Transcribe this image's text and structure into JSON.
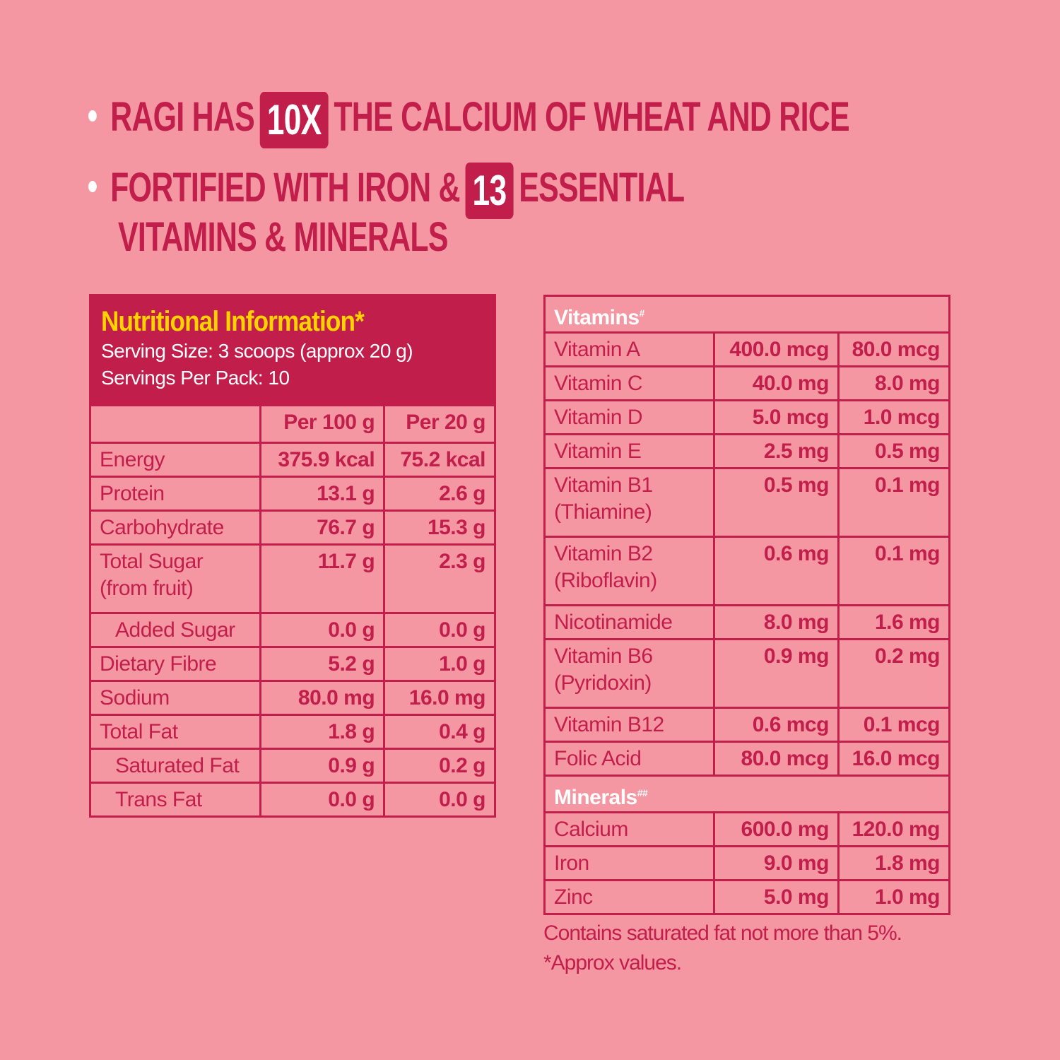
{
  "headline": {
    "line1_pre": "RAGI HAS",
    "line1_box": "10X",
    "line1_post": "THE CALCIUM OF WHEAT AND RICE",
    "line2_pre": "FORTIFIED WITH IRON &",
    "line2_box": "13",
    "line2_post": "ESSENTIAL",
    "line3": "VITAMINS & MINERALS"
  },
  "colors": {
    "background": "#F597A2",
    "accent": "#C21E4B",
    "title": "#FFD200"
  },
  "nutrition": {
    "title": "Nutritional Information*",
    "serving_size": "Serving Size: 3 scoops (approx 20 g)",
    "servings_per_pack": "Servings Per Pack: 10",
    "columns": [
      "",
      "Per 100 g",
      "Per 20 g"
    ],
    "rows": [
      {
        "name": "Energy",
        "per100": "375.9 kcal",
        "per20": "75.2 kcal"
      },
      {
        "name": "Protein",
        "per100": "13.1 g",
        "per20": "2.6 g"
      },
      {
        "name": "Carbohydrate",
        "per100": "76.7 g",
        "per20": "15.3 g"
      },
      {
        "name": "Total Sugar (from fruit)",
        "per100": "11.7 g",
        "per20": "2.3 g"
      },
      {
        "name": "Added Sugar",
        "per100": "0.0 g",
        "per20": "0.0 g",
        "indent": true
      },
      {
        "name": "Dietary Fibre",
        "per100": "5.2 g",
        "per20": "1.0 g"
      },
      {
        "name": "Sodium",
        "per100": "80.0 mg",
        "per20": "16.0 mg"
      },
      {
        "name": "Total Fat",
        "per100": "1.8 g",
        "per20": "0.4 g"
      },
      {
        "name": "Saturated Fat",
        "per100": "0.9 g",
        "per20": "0.2 g",
        "indent": true
      },
      {
        "name": "Trans Fat",
        "per100": "0.0 g",
        "per20": "0.0 g",
        "indent": true
      }
    ]
  },
  "vitamins": {
    "title": "Vitamins",
    "title_mark": "#",
    "rows": [
      {
        "name": "Vitamin A",
        "per100": "400.0 mcg",
        "per20": "80.0 mcg"
      },
      {
        "name": "Vitamin C",
        "per100": "40.0 mg",
        "per20": "8.0 mg"
      },
      {
        "name": "Vitamin D",
        "per100": "5.0 mcg",
        "per20": "1.0 mcg"
      },
      {
        "name": "Vitamin E",
        "per100": "2.5 mg",
        "per20": "0.5 mg"
      },
      {
        "name": "Vitamin B1 (Thiamine)",
        "per100": "0.5 mg",
        "per20": "0.1 mg"
      },
      {
        "name": "Vitamin B2 (Riboflavin)",
        "per100": "0.6 mg",
        "per20": "0.1 mg"
      },
      {
        "name": "Nicotinamide",
        "per100": "8.0 mg",
        "per20": "1.6 mg"
      },
      {
        "name": "Vitamin B6 (Pyridoxin)",
        "per100": "0.9 mg",
        "per20": "0.2 mg"
      },
      {
        "name": "Vitamin B12",
        "per100": "0.6 mcg",
        "per20": "0.1 mcg"
      },
      {
        "name": "Folic Acid",
        "per100": "80.0 mcg",
        "per20": "16.0 mcg"
      }
    ]
  },
  "minerals": {
    "title": "Minerals",
    "title_mark": "##",
    "rows": [
      {
        "name": "Calcium",
        "per100": "600.0 mg",
        "per20": "120.0 mg"
      },
      {
        "name": "Iron",
        "per100": "9.0 mg",
        "per20": "1.8 mg"
      },
      {
        "name": "Zinc",
        "per100": "5.0 mg",
        "per20": "1.0 mg"
      }
    ]
  },
  "footnotes": [
    "Contains saturated fat not more than 5%.",
    "*Approx values."
  ]
}
